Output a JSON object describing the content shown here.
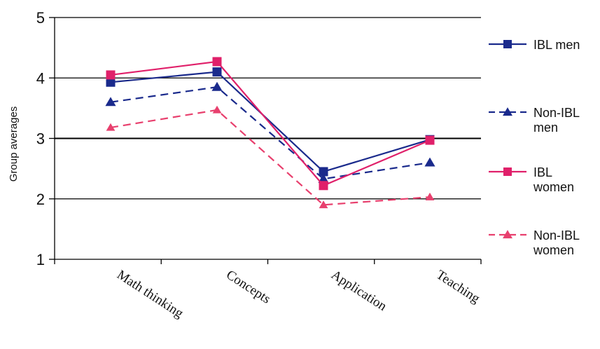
{
  "chart_data": {
    "type": "line",
    "title": "",
    "xlabel": "",
    "ylabel": "Group averages",
    "categories": [
      "Math thinking",
      "Concepts",
      "Application",
      "Teaching"
    ],
    "ylim": [
      1,
      5
    ],
    "yticks": [
      1,
      2,
      3,
      4,
      5
    ],
    "grid": "horizontal",
    "legend_position": "right",
    "series": [
      {
        "name": "IBL men",
        "legend_lines": [
          "IBL men"
        ],
        "values": [
          3.93,
          4.1,
          2.45,
          2.98
        ],
        "color": "#1a2a8c",
        "dash": "solid",
        "marker": "square"
      },
      {
        "name": "Non-IBL men",
        "legend_lines": [
          "Non-IBL",
          "men"
        ],
        "values": [
          3.6,
          3.85,
          2.33,
          2.6
        ],
        "color": "#1a2a8c",
        "dash": "dashed",
        "marker": "triangle"
      },
      {
        "name": "IBL women",
        "legend_lines": [
          "IBL",
          "women"
        ],
        "values": [
          4.05,
          4.27,
          2.22,
          2.97
        ],
        "color": "#e0206a",
        "dash": "solid",
        "marker": "square"
      },
      {
        "name": "Non-IBL women",
        "legend_lines": [
          "Non-IBL",
          "women"
        ],
        "values": [
          3.18,
          3.47,
          1.9,
          2.03
        ],
        "color": "#e8406e",
        "dash": "dashed",
        "marker": "triangle"
      }
    ]
  }
}
